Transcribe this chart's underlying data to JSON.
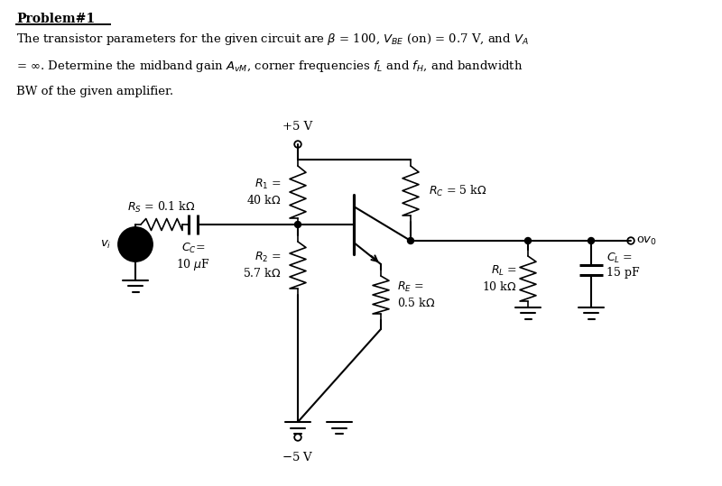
{
  "bg_color": "#ffffff",
  "title": "Problem#1",
  "fs": 9.5,
  "fs_text": 10,
  "lw": 1.5,
  "lw_thin": 1.2
}
